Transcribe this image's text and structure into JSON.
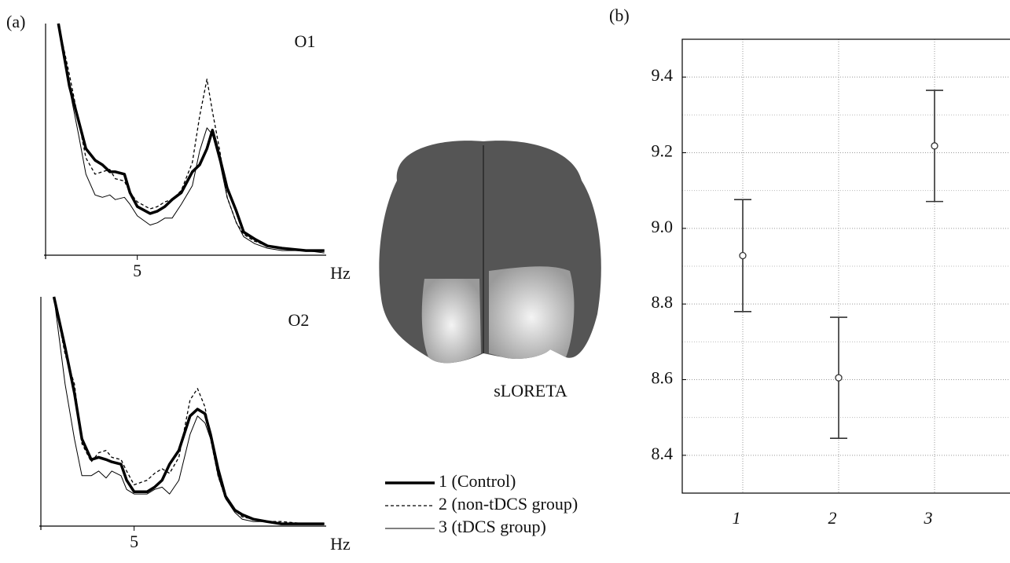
{
  "figure": {
    "panel_a_label": "(a)",
    "panel_b_label": "(b)",
    "image_caption": "sLORETA"
  },
  "chart_data": [
    {
      "type": "line",
      "title": "O1",
      "x_label": "Hz",
      "x": [
        0.7,
        1.3,
        1.8,
        2.2,
        2.7,
        3.1,
        3.5,
        3.8,
        4.3,
        4.6,
        5.0,
        5.7,
        6.1,
        6.5,
        6.9,
        7.4,
        8.0,
        8.4,
        8.8,
        9.1,
        9.5,
        9.9,
        10.4,
        10.8,
        11.4,
        12.1,
        12.9,
        14.2,
        15.2
      ],
      "xlim": [
        0,
        15.3
      ],
      "xticks": [
        5
      ],
      "ylim": [
        0,
        100
      ],
      "series": [
        {
          "color": "#000000",
          "width": 3.5,
          "values": [
            100,
            73,
            58,
            46,
            41,
            39,
            36,
            36,
            35,
            27,
            21,
            18,
            19,
            21,
            24,
            27,
            36,
            39,
            46,
            54,
            42,
            29,
            19,
            10,
            7,
            4,
            3,
            2,
            2
          ]
        },
        {
          "color": "#000000",
          "width": 1.3,
          "dash": "4 3",
          "values": [
            100,
            78,
            58,
            42,
            35,
            36,
            37,
            33,
            32,
            27,
            23,
            20,
            21,
            23,
            24,
            28,
            40,
            60,
            76,
            62,
            45,
            25,
            14,
            9,
            6,
            4,
            3,
            2,
            2
          ]
        },
        {
          "color": "#000000",
          "width": 1,
          "values": [
            100,
            72,
            52,
            35,
            26,
            25,
            26,
            24,
            25,
            22,
            17,
            13,
            14,
            16,
            16,
            22,
            30,
            45,
            55,
            52,
            40,
            25,
            14,
            8,
            5,
            3,
            2,
            2,
            1
          ]
        }
      ]
    },
    {
      "type": "line",
      "title": "O2",
      "x_label": "Hz",
      "x": [
        0.7,
        1.3,
        1.8,
        2.2,
        2.7,
        3.1,
        3.5,
        3.8,
        4.3,
        4.6,
        5.0,
        5.7,
        6.1,
        6.5,
        6.9,
        7.4,
        8.0,
        8.4,
        8.8,
        9.1,
        9.5,
        9.9,
        10.4,
        10.8,
        11.4,
        12.1,
        12.9,
        14.2,
        15.2
      ],
      "xlim": [
        0,
        15.3
      ],
      "xticks": [
        5
      ],
      "ylim": [
        0,
        100
      ],
      "series": [
        {
          "name": "1 (Control)",
          "color": "#000000",
          "width": 3.5,
          "values": [
            100,
            78,
            58,
            38,
            29,
            30,
            29,
            28,
            27,
            20,
            15,
            15,
            17,
            20,
            27,
            33,
            48,
            51,
            49,
            40,
            25,
            13,
            7,
            5,
            3,
            2,
            1,
            1,
            1
          ]
        },
        {
          "name": "2 (non-tDCS group)",
          "color": "#000000",
          "width": 1.3,
          "dash": "4 3",
          "values": [
            100,
            75,
            62,
            36,
            28,
            32,
            33,
            30,
            29,
            24,
            18,
            20,
            23,
            25,
            23,
            30,
            55,
            60,
            52,
            38,
            22,
            12,
            7,
            4,
            3,
            2,
            2,
            1,
            1
          ]
        },
        {
          "name": "3 (tDCS group)",
          "color": "#000000",
          "width": 1,
          "values": [
            100,
            62,
            38,
            22,
            22,
            24,
            21,
            24,
            22,
            16,
            14,
            14,
            16,
            17,
            14,
            20,
            40,
            48,
            45,
            38,
            22,
            12,
            6,
            3,
            2,
            2,
            1,
            1,
            1
          ]
        }
      ]
    },
    {
      "type": "errorbar",
      "categories": [
        "1",
        "2",
        "3"
      ],
      "values": [
        8.928,
        8.605,
        9.218
      ],
      "errors": [
        0.148,
        0.16,
        0.147
      ],
      "color": "#333333",
      "ylim": [
        8.3,
        9.5
      ],
      "yticks": [
        8.4,
        8.6,
        8.8,
        {
          "value": 9.0,
          "label": "9.0"
        },
        9.2,
        9.4
      ],
      "yminorticks": [
        8.5,
        8.7,
        8.9,
        9.1,
        9.3
      ],
      "grid": true
    }
  ]
}
